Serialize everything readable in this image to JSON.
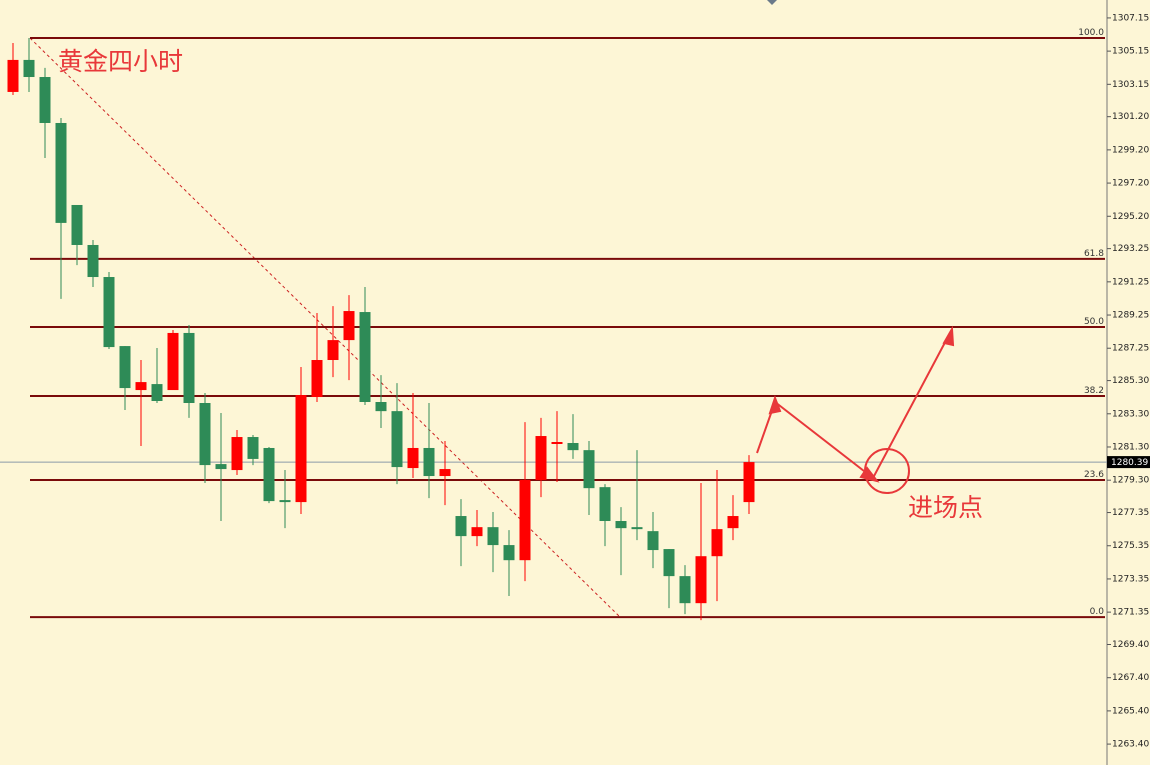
{
  "chart_data": {
    "type": "candlestick",
    "title": "黄金四小时",
    "annotation": "进场点",
    "current_price": 1280.39,
    "up_color": "#ff0000",
    "down_color": "#2e8b57",
    "ylim": [
      1262.14,
      1308.23
    ],
    "yticks": [
      1307.15,
      1305.15,
      1303.15,
      {
        "value": 1301.2,
        "label": "1301.20"
      },
      {
        "value": 1299.2,
        "label": "1299.20"
      },
      {
        "value": 1297.2,
        "label": "1297.20"
      },
      {
        "value": 1295.2,
        "label": "1295.20"
      },
      1293.25,
      1291.25,
      1289.25,
      1287.25,
      {
        "value": 1285.3,
        "label": "1285.30"
      },
      {
        "value": 1283.3,
        "label": "1283.30"
      },
      {
        "value": 1281.3,
        "label": "1281.30"
      },
      {
        "value": 1279.3,
        "label": "1279.30"
      },
      1277.35,
      1275.35,
      1273.35,
      1271.35,
      {
        "value": 1269.4,
        "label": "1269.40"
      },
      {
        "value": 1267.4,
        "label": "1267.40"
      },
      {
        "value": 1265.4,
        "label": "1265.40"
      },
      {
        "value": 1263.4,
        "label": "1263.40"
      }
    ],
    "fib_levels": [
      {
        "value": 1305.94,
        "label": "100.0"
      },
      {
        "value": 1292.63,
        "label": "61.8"
      },
      {
        "value": 1288.53,
        "label": "50.0"
      },
      {
        "value": 1284.37,
        "label": "38.2"
      },
      {
        "value": 1279.31,
        "label": "23.6"
      },
      {
        "value": 1271.05,
        "label": "0.0"
      }
    ],
    "open": [
      1302.69,
      1304.62,
      1303.59,
      1300.82,
      1295.88,
      1293.47,
      1291.54,
      1287.38,
      1284.73,
      1285.09,
      1284.73,
      1288.17,
      1283.95,
      1280.27,
      1279.91,
      1281.9,
      1281.24,
      1278.1,
      1277.98,
      1284.31,
      1286.54,
      1287.74,
      1289.43,
      1284.01,
      1283.46,
      1280.03,
      1281.24,
      1279.55,
      1277.14,
      1275.93,
      1276.47,
      1275.39,
      1274.48,
      1279.31,
      1281.48,
      1281.54,
      1281.11,
      1278.88,
      1276.84,
      1276.47,
      1276.23,
      1275.15,
      1273.52,
      1271.89,
      1274.72,
      1276.41,
      1277.98
    ],
    "high": [
      1305.64,
      1305.94,
      1304.14,
      1301.12,
      1295.88,
      1293.77,
      1291.84,
      1287.38,
      1286.54,
      1287.26,
      1288.35,
      1288.65,
      1284.55,
      1283.35,
      1282.32,
      1282.02,
      1281.3,
      1279.91,
      1286.12,
      1289.37,
      1289.79,
      1290.45,
      1290.94,
      1285.63,
      1285.15,
      1284.55,
      1283.95,
      1281.66,
      1278.16,
      1277.5,
      1277.38,
      1276.29,
      1282.8,
      1283.05,
      1283.46,
      1283.28,
      1281.66,
      1279.06,
      1277.68,
      1281.11,
      1277.38,
      1275.15,
      1274.18,
      1279.13,
      1279.91,
      1278.4,
      1280.81
    ],
    "low": [
      1302.51,
      1302.69,
      1298.71,
      1290.22,
      1292.26,
      1290.94,
      1287.2,
      1283.53,
      1281.36,
      1283.95,
      1284.73,
      1283.05,
      1279.13,
      1276.84,
      1279.61,
      1280.21,
      1277.92,
      1276.41,
      1277.26,
      1284.01,
      1285.51,
      1285.33,
      1283.83,
      1282.44,
      1279.06,
      1279.43,
      1278.22,
      1277.8,
      1274.12,
      1275.33,
      1273.76,
      1272.32,
      1273.22,
      1278.28,
      1279.19,
      1280.58,
      1277.2,
      1275.33,
      1273.58,
      1275.69,
      1274.0,
      1271.59,
      1271.23,
      1270.87,
      1272.01,
      1275.69,
      1277.26
    ],
    "close": [
      1304.62,
      1303.59,
      1300.82,
      1294.8,
      1293.47,
      1291.54,
      1287.32,
      1284.85,
      1285.21,
      1284.07,
      1288.17,
      1283.95,
      1280.21,
      1279.97,
      1281.9,
      1280.58,
      1278.04,
      1277.98,
      1284.43,
      1286.54,
      1287.74,
      1289.49,
      1284.01,
      1283.46,
      1280.09,
      1281.24,
      1279.55,
      1279.97,
      1275.93,
      1276.47,
      1275.39,
      1274.48,
      1279.31,
      1281.96,
      1281.6,
      1281.11,
      1278.82,
      1276.84,
      1276.41,
      1276.35,
      1275.09,
      1273.52,
      1271.89,
      1274.72,
      1276.35,
      1277.14,
      1280.39
    ]
  }
}
